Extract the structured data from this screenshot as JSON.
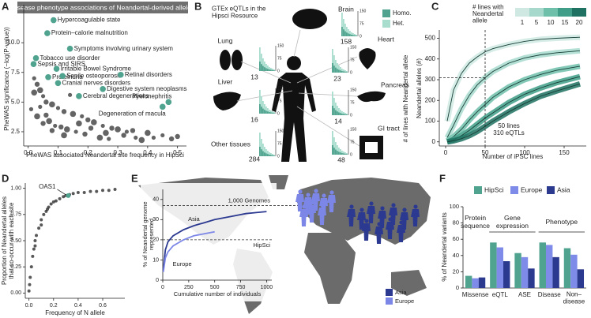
{
  "chart_data": [
    {
      "type": "scatter",
      "panel": "A",
      "title": "Disease phenotype associations of Neandertal-derived alleles",
      "x_label": "PheWAS associated Neandertal site frequency in HipSci",
      "y_label": "PheWAS significance (−log(P-value))",
      "xlim": [
        -0.015,
        0.53
      ],
      "ylim": [
        1.3,
        13.2
      ],
      "xticks": [
        {
          "value": 0,
          "label": "0.0"
        },
        0.1,
        0.2,
        0.3,
        0.4,
        0.5
      ],
      "yticks": [
        2.5,
        {
          "value": 5,
          "label": "5.0"
        },
        7.5,
        {
          "value": 10,
          "label": "10.0"
        }
      ],
      "points": {
        "color": "#111111",
        "x": [
          0.02,
          0.03,
          0.04,
          0.05,
          0.06,
          0.08,
          0.1,
          0.12,
          0.15,
          0.18,
          0.2,
          0.22,
          0.25,
          0.28,
          0.3,
          0.33,
          0.35,
          0.4,
          0.45,
          0.5,
          0.02,
          0.04,
          0.06,
          0.07,
          0.09,
          0.11,
          0.13,
          0.16,
          0.19,
          0.24,
          0.27,
          0.32,
          0.38,
          0.42,
          0.05,
          0.03,
          0.01,
          0.08,
          0.12,
          0.14,
          0.21,
          0.26,
          0.36,
          0.48,
          0.17
        ],
        "y": [
          7.0,
          6.5,
          6.0,
          5.5,
          5.0,
          4.8,
          4.5,
          4.2,
          4.0,
          3.8,
          3.5,
          3.3,
          3.0,
          2.8,
          2.7,
          2.5,
          2.6,
          2.4,
          2.2,
          2.1,
          5.8,
          4.6,
          3.9,
          3.4,
          3.0,
          2.9,
          2.7,
          2.5,
          2.3,
          2.0,
          1.9,
          2.2,
          1.8,
          2.0,
          3.2,
          3.8,
          4.4,
          2.6,
          2.2,
          5.6,
          2.8,
          2.4,
          2.0,
          1.9,
          3.2
        ]
      },
      "highlights": {
        "color": "#4fa38f",
        "labels": [
          "Hypercoagulable state",
          "Protein–calorie malnutrition",
          "Symptoms involving urinary system",
          "Tobacco use disorder",
          "Sepsis and SIRS",
          "Irritable Bowel Syndrome",
          "Proteinuria",
          "Senile osteoporosis",
          "Cranial nerves disorders",
          "Retinal disorders",
          "Digestive system neoplasms",
          "Cerebral degenerations",
          "Pyelonephritis",
          "Degeneration of macula"
        ],
        "x": [
          0.085,
          0.064,
          0.14,
          0.026,
          0.018,
          0.095,
          0.067,
          0.115,
          0.1,
          0.31,
          0.25,
          0.17,
          0.47,
          0.45
        ],
        "y": [
          11.9,
          10.8,
          9.5,
          8.7,
          8.2,
          7.8,
          7.1,
          7.2,
          6.6,
          7.3,
          6.1,
          5.5,
          5.0,
          4.6
        ]
      }
    },
    {
      "type": "diagram",
      "panel": "B",
      "title": "GTEx eQTLs in the Hipsci Resource",
      "legend": [
        {
          "label": "Homo.",
          "color": "#4fa38f"
        },
        {
          "label": "Het.",
          "color": "#a8dccd"
        }
      ],
      "axis_label": "# of lines with Neandertal allele",
      "yticks": [
        150,
        75,
        0
      ],
      "tissues": [
        {
          "name": "Brain",
          "count": 158
        },
        {
          "name": "Lung",
          "count": 13
        },
        {
          "name": "Liver",
          "count": 16
        },
        {
          "name": "Other tissues",
          "count": 284
        },
        {
          "name": "Heart",
          "count": 23
        },
        {
          "name": "Pancreas",
          "count": 14
        },
        {
          "name": "GI tract",
          "count": 48
        }
      ]
    },
    {
      "type": "line",
      "panel": "C",
      "legend_title": "# lines with Neandertal allele",
      "x_label": "Number of iPSC lines",
      "y_label": "Neandertal alleles (#)",
      "xlim": [
        -8,
        178
      ],
      "ylim": [
        -20,
        540
      ],
      "xticks": [
        0,
        50,
        100,
        150
      ],
      "yticks": [
        0,
        100,
        200,
        300,
        400,
        500
      ],
      "x": [
        2,
        10,
        20,
        30,
        40,
        50,
        60,
        80,
        100,
        120,
        140,
        170
      ],
      "series": [
        {
          "name": "1",
          "color": "#cfe9e2",
          "values": [
            100,
            250,
            330,
            380,
            410,
            435,
            450,
            470,
            485,
            495,
            500,
            505
          ]
        },
        {
          "name": "5",
          "color": "#a6d9cc",
          "values": [
            20,
            80,
            160,
            225,
            275,
            310,
            340,
            380,
            405,
            420,
            430,
            440
          ]
        },
        {
          "name": "10",
          "color": "#6ec0ab",
          "values": [
            5,
            25,
            60,
            105,
            145,
            180,
            215,
            265,
            300,
            325,
            345,
            365
          ]
        },
        {
          "name": "15",
          "color": "#3f9d88",
          "values": [
            0,
            10,
            30,
            55,
            85,
            115,
            140,
            190,
            230,
            260,
            285,
            315
          ]
        },
        {
          "name": "20",
          "color": "#1f7262",
          "values": [
            0,
            5,
            15,
            30,
            50,
            75,
            100,
            145,
            185,
            220,
            245,
            280
          ]
        }
      ],
      "reference_x": 50,
      "reference_y": 310,
      "annotations": [
        "50 lines",
        "310 eQTLs"
      ]
    },
    {
      "type": "scatter",
      "panel": "D",
      "x_label": "Frequency of N allele",
      "y_label": [
        "Proportion of Neandertal alleles",
        "that co-occur with each site"
      ],
      "xlim": [
        -0.03,
        0.78
      ],
      "ylim": [
        -0.05,
        1.05
      ],
      "xticks": [
        {
          "value": 0,
          "label": "0.0"
        },
        0.2,
        0.4,
        0.6
      ],
      "yticks": [
        {
          "value": 0,
          "label": "0.00"
        },
        0.25,
        {
          "value": 0.5,
          "label": "0.50"
        },
        0.75,
        {
          "value": 1,
          "label": "1.00"
        }
      ],
      "points": {
        "color": "#111111",
        "x": [
          0,
          0.005,
          0.01,
          0.02,
          0.03,
          0.04,
          0.05,
          0.06,
          0.08,
          0.1,
          0.12,
          0.14,
          0.16,
          0.18,
          0.2,
          0.22,
          0.25,
          0.28,
          0.3,
          0.33,
          0.36,
          0.4,
          0.45,
          0.5,
          0.55,
          0.6,
          0.65,
          0.7,
          0.05,
          0.1,
          0.15
        ],
        "y": [
          0.02,
          0.08,
          0.15,
          0.25,
          0.35,
          0.42,
          0.5,
          0.55,
          0.62,
          0.7,
          0.75,
          0.78,
          0.82,
          0.85,
          0.87,
          0.88,
          0.9,
          0.92,
          0.93,
          0.94,
          0.95,
          0.96,
          0.96,
          0.97,
          0.97,
          0.98,
          0.98,
          0.99,
          0.45,
          0.65,
          0.8
        ]
      },
      "highlight": {
        "label": "OAS1",
        "x": 0.32,
        "y": 0.93,
        "color": "#4fa38f"
      }
    },
    {
      "type": "line",
      "panel": "E",
      "x_label": "Cumulative number of individuals",
      "y_label": "% of Neandertal genome represented",
      "xlim": [
        0,
        1050
      ],
      "ylim": [
        0,
        45
      ],
      "xticks": [
        0,
        250,
        500,
        750,
        1000
      ],
      "yticks": [
        0,
        10,
        20,
        30,
        40
      ],
      "series": [
        {
          "name": "Asia",
          "color": "#2b3990",
          "x": [
            5,
            25,
            50,
            100,
            200,
            300,
            400,
            500,
            600,
            700,
            800,
            900,
            1000
          ],
          "values": [
            5,
            15,
            19,
            22,
            25,
            27,
            28.5,
            30,
            31,
            32,
            33,
            33.5,
            34
          ]
        },
        {
          "name": "Europe",
          "color": "#7b86e6",
          "x": [
            5,
            25,
            50,
            100,
            200,
            300,
            400,
            500
          ],
          "values": [
            4,
            11,
            14,
            17,
            20,
            22,
            23,
            24
          ]
        }
      ],
      "reference_lines": [
        {
          "value": 37,
          "label": "1,000 Genomes"
        },
        {
          "value": 20,
          "label": "HipSci"
        }
      ]
    },
    {
      "type": "bar",
      "panel": "F",
      "y_label": "% of Neandertal variants",
      "categories": [
        "Missense",
        "eQTL",
        "ASE",
        "Disease",
        "Non–disease"
      ],
      "groups": [
        "Protein sequence",
        "Gene expression",
        "Phenotype"
      ],
      "ylim": [
        0,
        100
      ],
      "yticks": [
        0,
        20,
        40,
        60,
        80,
        100
      ],
      "series": [
        {
          "name": "HipSci",
          "color": "#4fa38f",
          "values": [
            15,
            56,
            43,
            56,
            49
          ]
        },
        {
          "name": "Europe",
          "color": "#7f8be8",
          "values": [
            12,
            50,
            38,
            53,
            41
          ]
        },
        {
          "name": "Asia",
          "color": "#2b3a8f",
          "values": [
            13,
            33,
            24,
            38,
            23
          ]
        }
      ]
    }
  ]
}
